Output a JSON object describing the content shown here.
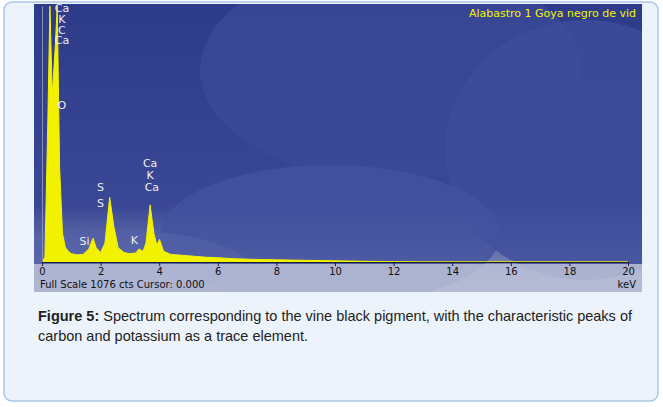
{
  "chart_data": {
    "type": "area",
    "title": "Alabastro 1 Goya negro de vid",
    "x_label": "keV",
    "footer": "Full Scale 1076 cts Cursor: 0.000",
    "x": [
      0.0,
      0.1,
      0.2,
      0.27,
      0.35,
      0.45,
      0.52,
      0.6,
      0.7,
      0.8,
      0.9,
      1.0,
      1.2,
      1.4,
      1.6,
      1.74,
      1.85,
      2.0,
      2.15,
      2.31,
      2.45,
      2.6,
      2.8,
      3.0,
      3.2,
      3.31,
      3.45,
      3.55,
      3.69,
      3.82,
      3.92,
      4.01,
      4.15,
      4.4,
      4.8,
      5.2,
      5.6,
      6.0,
      6.5,
      7.0,
      7.5,
      8.0,
      9.0,
      10.0,
      11.0,
      12.0,
      13.0,
      20.0
    ],
    "values": [
      0,
      20,
      600,
      1076,
      700,
      900,
      1076,
      400,
      120,
      60,
      45,
      35,
      30,
      32,
      55,
      100,
      60,
      40,
      80,
      272,
      150,
      60,
      40,
      35,
      38,
      55,
      45,
      80,
      240,
      120,
      70,
      95,
      45,
      32,
      28,
      24,
      20,
      18,
      14,
      12,
      10,
      9,
      7,
      5,
      3,
      1,
      0,
      0
    ],
    "color": "#f2f200",
    "xlim": [
      0,
      20
    ],
    "xticks": [
      0,
      2,
      4,
      6,
      8,
      10,
      12,
      14,
      16,
      18,
      20
    ],
    "ylim": [
      0,
      1076
    ],
    "tick_labels": "x",
    "grid": false,
    "annotations": [
      {
        "text": "Ca",
        "x": 0.68,
        "y": 1050
      },
      {
        "text": "K",
        "x": 0.68,
        "y": 1005
      },
      {
        "text": "C",
        "x": 0.68,
        "y": 960
      },
      {
        "text": "Ca",
        "x": 0.68,
        "y": 915
      },
      {
        "text": "O",
        "x": 0.68,
        "y": 645
      },
      {
        "text": "Si",
        "x": 1.45,
        "y": 70
      },
      {
        "text": "S",
        "x": 2.0,
        "y": 300
      },
      {
        "text": "S",
        "x": 2.0,
        "y": 230
      },
      {
        "text": "Ca",
        "x": 3.69,
        "y": 400
      },
      {
        "text": "K",
        "x": 3.69,
        "y": 350
      },
      {
        "text": "Ca",
        "x": 3.75,
        "y": 300
      },
      {
        "text": "K",
        "x": 3.15,
        "y": 75
      }
    ]
  },
  "figure": {
    "caption_label": "Figure 5:",
    "caption": "Spectrum corresponding to the vine black pigment, with the characteristic peaks of carbon and potassium as a trace element."
  }
}
